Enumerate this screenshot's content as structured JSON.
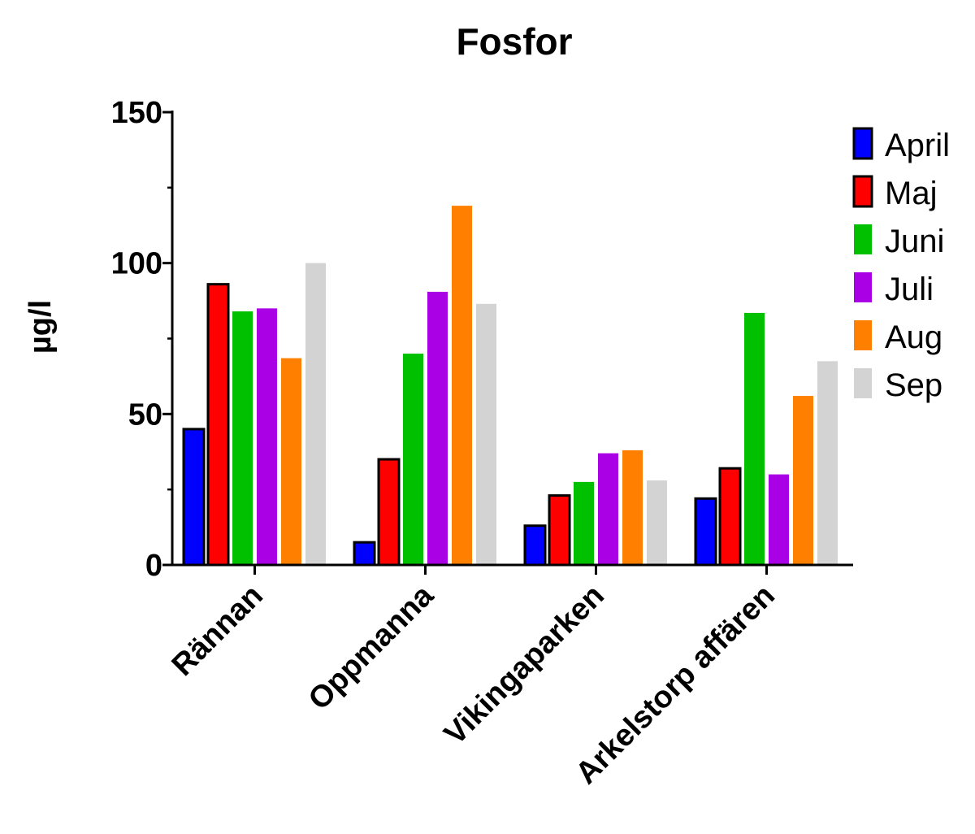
{
  "chart_data": {
    "type": "bar",
    "title": "Fosfor",
    "xlabel": "",
    "ylabel": "µg/l",
    "ylim": [
      0,
      150
    ],
    "yticks": [
      "0",
      "50",
      "100",
      "150"
    ],
    "categories": [
      "Rännan",
      "Oppmanna",
      "Vikingaparken",
      "Arkelstorp affären"
    ],
    "series": [
      {
        "name": "April",
        "color": "#0000ff",
        "outlined": true,
        "values": [
          45,
          7.5,
          13,
          22
        ]
      },
      {
        "name": "Maj",
        "color": "#ff0000",
        "outlined": true,
        "values": [
          93,
          35,
          23,
          32
        ]
      },
      {
        "name": "Juni",
        "color": "#00c000",
        "outlined": false,
        "values": [
          84,
          70,
          27.5,
          83.5
        ]
      },
      {
        "name": "Juli",
        "color": "#aa00e6",
        "outlined": false,
        "values": [
          85,
          90.5,
          37,
          30
        ]
      },
      {
        "name": "Aug",
        "color": "#ff8000",
        "outlined": false,
        "values": [
          68.5,
          119,
          38,
          56
        ]
      },
      {
        "name": "Sep",
        "color": "#d3d3d3",
        "outlined": false,
        "values": [
          100,
          86.5,
          28,
          67.5
        ]
      }
    ],
    "grid": false,
    "legend_position": "right"
  }
}
